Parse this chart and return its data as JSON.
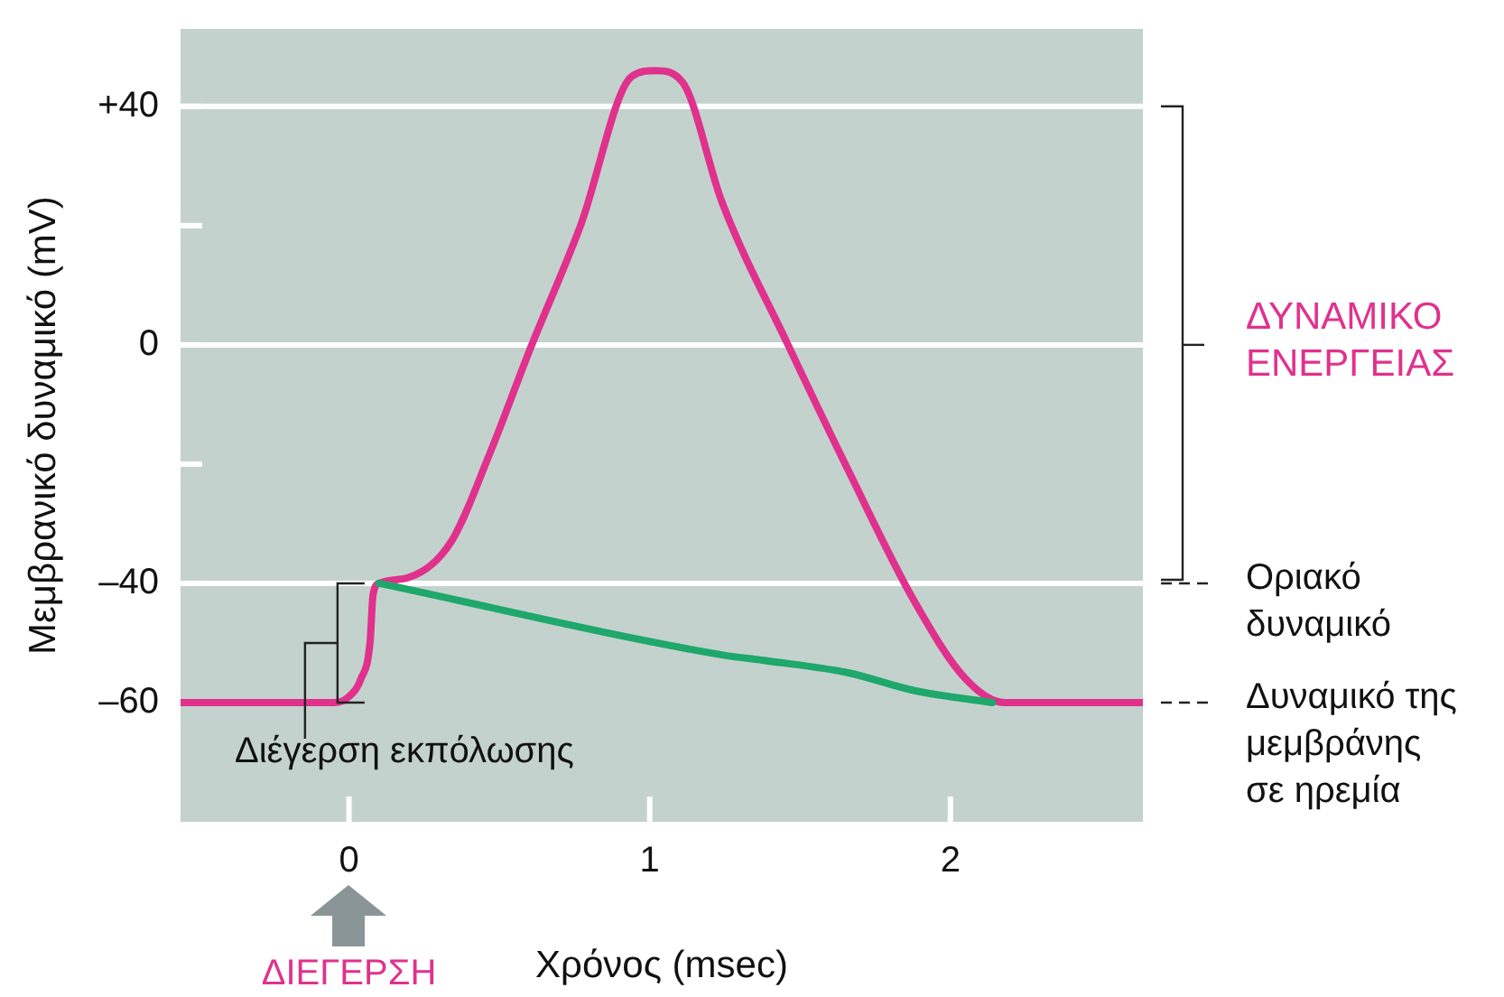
{
  "chart_data": {
    "type": "line",
    "xlabel": "Χρόνος (msec)",
    "ylabel": "Μεμβρανικό δυναμικό (mV)",
    "xlim": [
      -0.56,
      2.64
    ],
    "ylim": [
      -80,
      53
    ],
    "xticks": [
      0,
      1,
      2
    ],
    "yticks": [
      {
        "value": 40,
        "label": "+40"
      },
      {
        "value": 20,
        "label": null
      },
      0,
      {
        "value": -20,
        "label": null
      },
      {
        "value": -40,
        "label": "–40"
      },
      {
        "value": -60,
        "label": "–60"
      }
    ],
    "series": [
      {
        "color": "#e0318d",
        "x": [
          -0.56,
          -0.05,
          0,
          0.04,
          0.07,
          0.08,
          0.1,
          0.2,
          0.34,
          0.47,
          0.6,
          0.77,
          0.94,
          1.02,
          1.11,
          1.24,
          1.46,
          1.66,
          1.88,
          2.05,
          2.18,
          2.64
        ],
        "values": [
          -60,
          -60,
          -59,
          -56,
          -50,
          -42,
          -40,
          -39,
          -33,
          -18,
          -1,
          20,
          45,
          46,
          44,
          24,
          0,
          -21,
          -43,
          -56,
          -60,
          -60
        ]
      },
      {
        "color": "#1ea86b",
        "x": [
          0.1,
          1.24,
          1.39,
          1.66,
          1.88,
          2.14
        ],
        "values": [
          -40,
          -52,
          -53,
          -55,
          -58,
          -60
        ]
      }
    ],
    "ref_lines": [
      {
        "axis": "y",
        "value": 40,
        "color": "#ffffff"
      },
      {
        "axis": "y",
        "value": 0,
        "color": "#ffffff"
      },
      {
        "axis": "y",
        "value": -40,
        "color": "#ffffff"
      }
    ],
    "annotations": [
      {
        "text": "Διέγερση εκπόλωσης",
        "x": 0.07,
        "y": -50
      },
      "ΔΥΝΑΜΙΚΟ\nΕΝΕΡΓΕΙΑΣ",
      "Οριακό\nδυναμικό",
      "Δυναμικό της\nμεμβράνης\nσε ηρεμία",
      "ΔΙΕΓΕΡΣΗ"
    ],
    "legend": false,
    "grid": false
  }
}
